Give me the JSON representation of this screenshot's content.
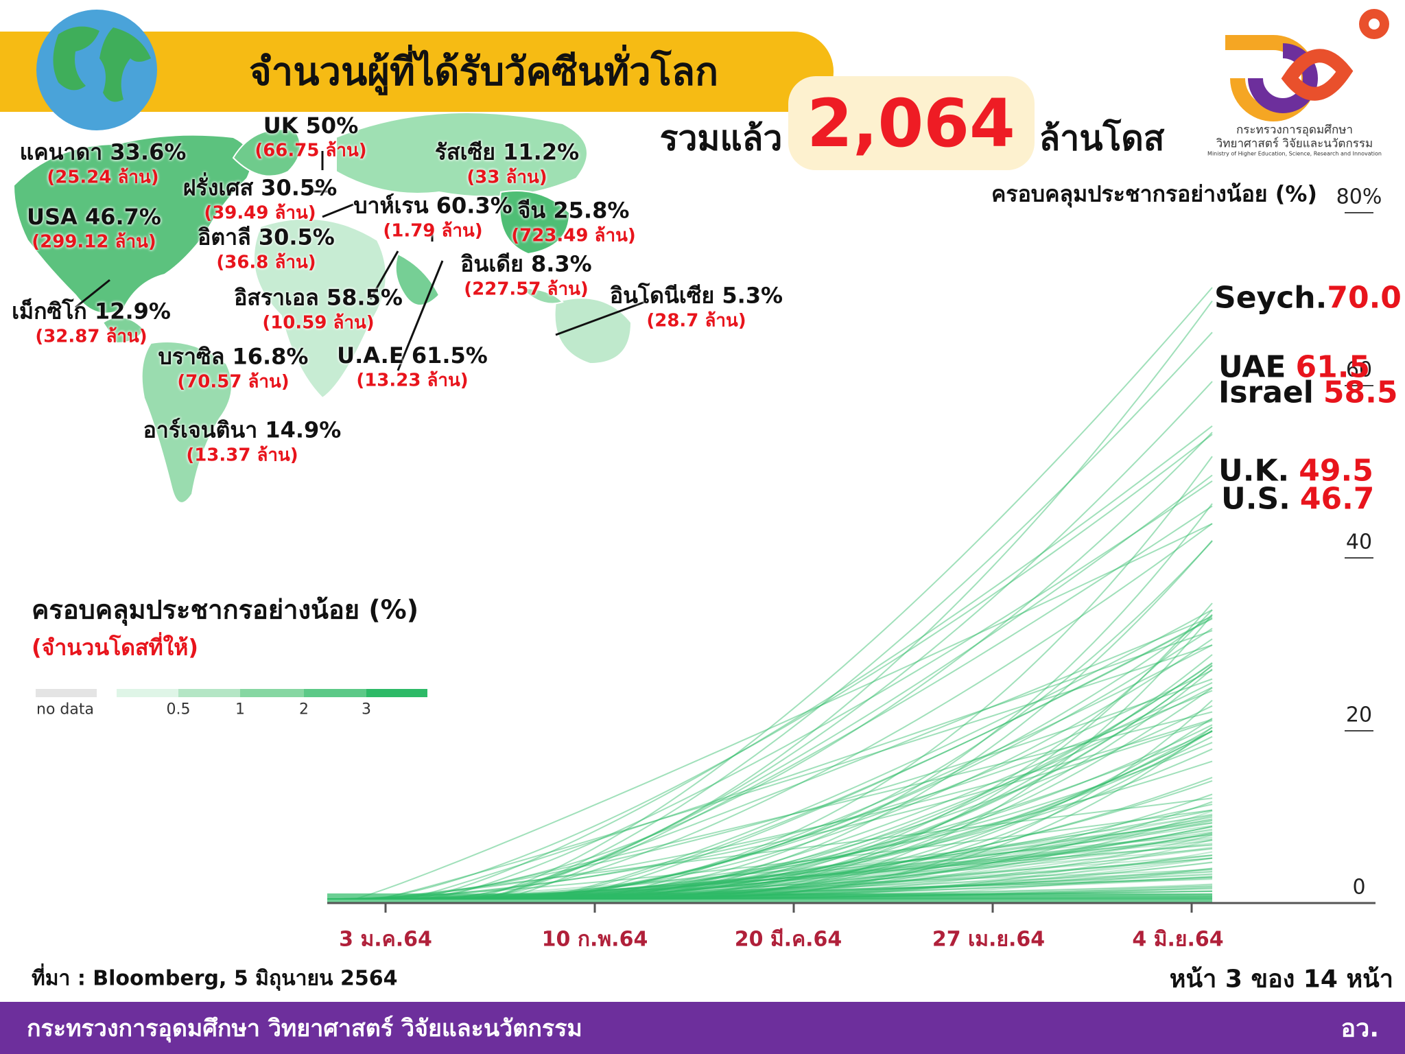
{
  "header": {
    "title": "จำนวนผู้ที่ได้รับวัคซีนทั่วโลก",
    "total_prefix": "รวมแล้ว",
    "total": "2,064",
    "total_suffix": "ล้านโดส"
  },
  "logo": {
    "line1": "กระทรวงการอุดมศึกษา",
    "line2": "วิทยาศาสตร์ วิจัยและนวัตกรรม",
    "line3": "Ministry of Higher Education, Science, Research and Innovation"
  },
  "map": {
    "countries": [
      {
        "label": "แคนาดา 33.6%",
        "doses": "(25.24 ล้าน)"
      },
      {
        "label": "UK 50%",
        "doses": "(66.75 ล้าน)"
      },
      {
        "label": "รัสเซีย 11.2%",
        "doses": "(33 ล้าน)"
      },
      {
        "label": "ฝรั่งเศส 30.5%",
        "doses": "(39.49 ล้าน)"
      },
      {
        "label": "USA 46.7%",
        "doses": "(299.12 ล้าน)"
      },
      {
        "label": "อิตาลี 30.5%",
        "doses": "(36.8 ล้าน)"
      },
      {
        "label": "บาห์เรน 60.3%",
        "doses": "(1.79 ล้าน)"
      },
      {
        "label": "จีน 25.8%",
        "doses": "(723.49 ล้าน)"
      },
      {
        "label": "อินเดีย 8.3%",
        "doses": "(227.57 ล้าน)"
      },
      {
        "label": "อิสราเอล 58.5%",
        "doses": "(10.59 ล้าน)"
      },
      {
        "label": "เม็กซิโก 12.9%",
        "doses": "(32.87 ล้าน)"
      },
      {
        "label": "อินโดนีเซีย 5.3%",
        "doses": "(28.7 ล้าน)"
      },
      {
        "label": "บราซิล 16.8%",
        "doses": "(70.57 ล้าน)"
      },
      {
        "label": "U.A.E 61.5%",
        "doses": "(13.23 ล้าน)"
      },
      {
        "label": "อาร์เจนตินา 14.9%",
        "doses": "(13.37 ล้าน)"
      }
    ],
    "legend": {
      "title": "ครอบคลุมประชากรอย่างน้อย (%)",
      "subtitle": "(จำนวนโดสที่ให้)",
      "labels": [
        "no data",
        "0.5",
        "1",
        "2",
        "3"
      ]
    }
  },
  "chart": {
    "title": "ครอบคลุมประชากรอย่างน้อย (%)",
    "yticks": [
      "80%",
      "60",
      "40",
      "20",
      "0"
    ],
    "xticks": [
      "3 ม.ค.64",
      "10 ก.พ.64",
      "20 มี.ค.64",
      "27 เม.ย.64",
      "4 มิ.ย.64"
    ],
    "highlights": [
      {
        "name": "Seych.",
        "value": "70.0"
      },
      {
        "name": "UAE",
        "value": "61.5"
      },
      {
        "name": "Israel",
        "value": "58.5"
      },
      {
        "name": "U.K.",
        "value": "49.5"
      },
      {
        "name": "U.S.",
        "value": "46.7"
      }
    ]
  },
  "footer": {
    "source": "ที่มา : Bloomberg, 5 มิถุนายน 2564",
    "page": "หน้า 3 ของ 14 หน้า",
    "ministry": "กระทรวงการอุดมศึกษา วิทยาศาสตร์ วิจัยและนวัตกรรม",
    "abbr": "อว."
  }
}
